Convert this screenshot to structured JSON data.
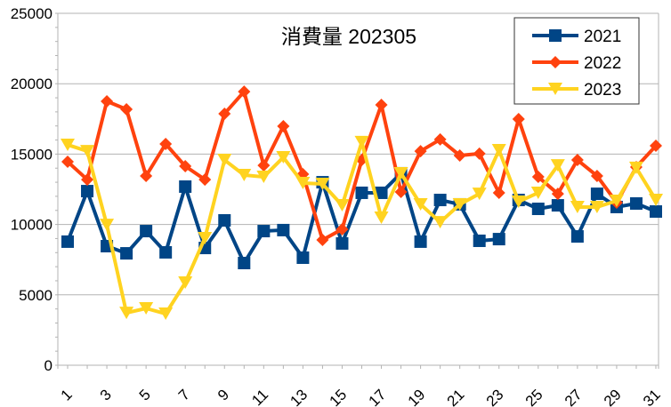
{
  "chart_data": {
    "type": "line",
    "title": "消費量 202305",
    "xlabel": "",
    "ylabel": "",
    "x": [
      1,
      2,
      3,
      4,
      5,
      6,
      7,
      8,
      9,
      10,
      11,
      12,
      13,
      14,
      15,
      16,
      17,
      18,
      19,
      20,
      21,
      22,
      23,
      24,
      25,
      26,
      27,
      28,
      29,
      30,
      31
    ],
    "x_tick_labels": [
      "1",
      "3",
      "5",
      "7",
      "9",
      "11",
      "13",
      "15",
      "17",
      "19",
      "21",
      "23",
      "25",
      "27",
      "29",
      "31"
    ],
    "y_tick_labels": [
      "0",
      "5000",
      "10000",
      "15000",
      "20000",
      "25000"
    ],
    "ylim": [
      0,
      25000
    ],
    "grid": "horizontal",
    "legend_position": "top-right",
    "series": [
      {
        "name": "2021",
        "color": "#004586",
        "marker": "square",
        "values": [
          8780,
          12370,
          8460,
          7950,
          9530,
          8020,
          12690,
          8330,
          10290,
          7260,
          9530,
          9600,
          7640,
          13000,
          8650,
          12250,
          12250,
          13640,
          8780,
          11740,
          11430,
          8840,
          8960,
          11740,
          11110,
          11360,
          9150,
          12180,
          11240,
          11490,
          10920
        ]
      },
      {
        "name": "2022",
        "color": "#ff420e",
        "marker": "diamond",
        "values": [
          14460,
          13190,
          18750,
          18180,
          13450,
          15720,
          14140,
          13190,
          17870,
          19440,
          14200,
          16980,
          13570,
          8900,
          9660,
          14580,
          18500,
          12310,
          15210,
          16040,
          14900,
          15030,
          12250,
          17490,
          13380,
          12180,
          14580,
          13450,
          11550,
          14080,
          15590
        ]
      },
      {
        "name": "2023",
        "color": "#ffd320",
        "marker": "triangle-down",
        "values": [
          15660,
          15210,
          9970,
          3720,
          4040,
          3660,
          5870,
          9030,
          14580,
          13510,
          13380,
          14770,
          12940,
          12880,
          11360,
          15850,
          10480,
          13640,
          11430,
          10160,
          11430,
          12180,
          15280,
          11620,
          12250,
          14200,
          11240,
          11240,
          11680,
          14020,
          11740
        ]
      }
    ]
  }
}
